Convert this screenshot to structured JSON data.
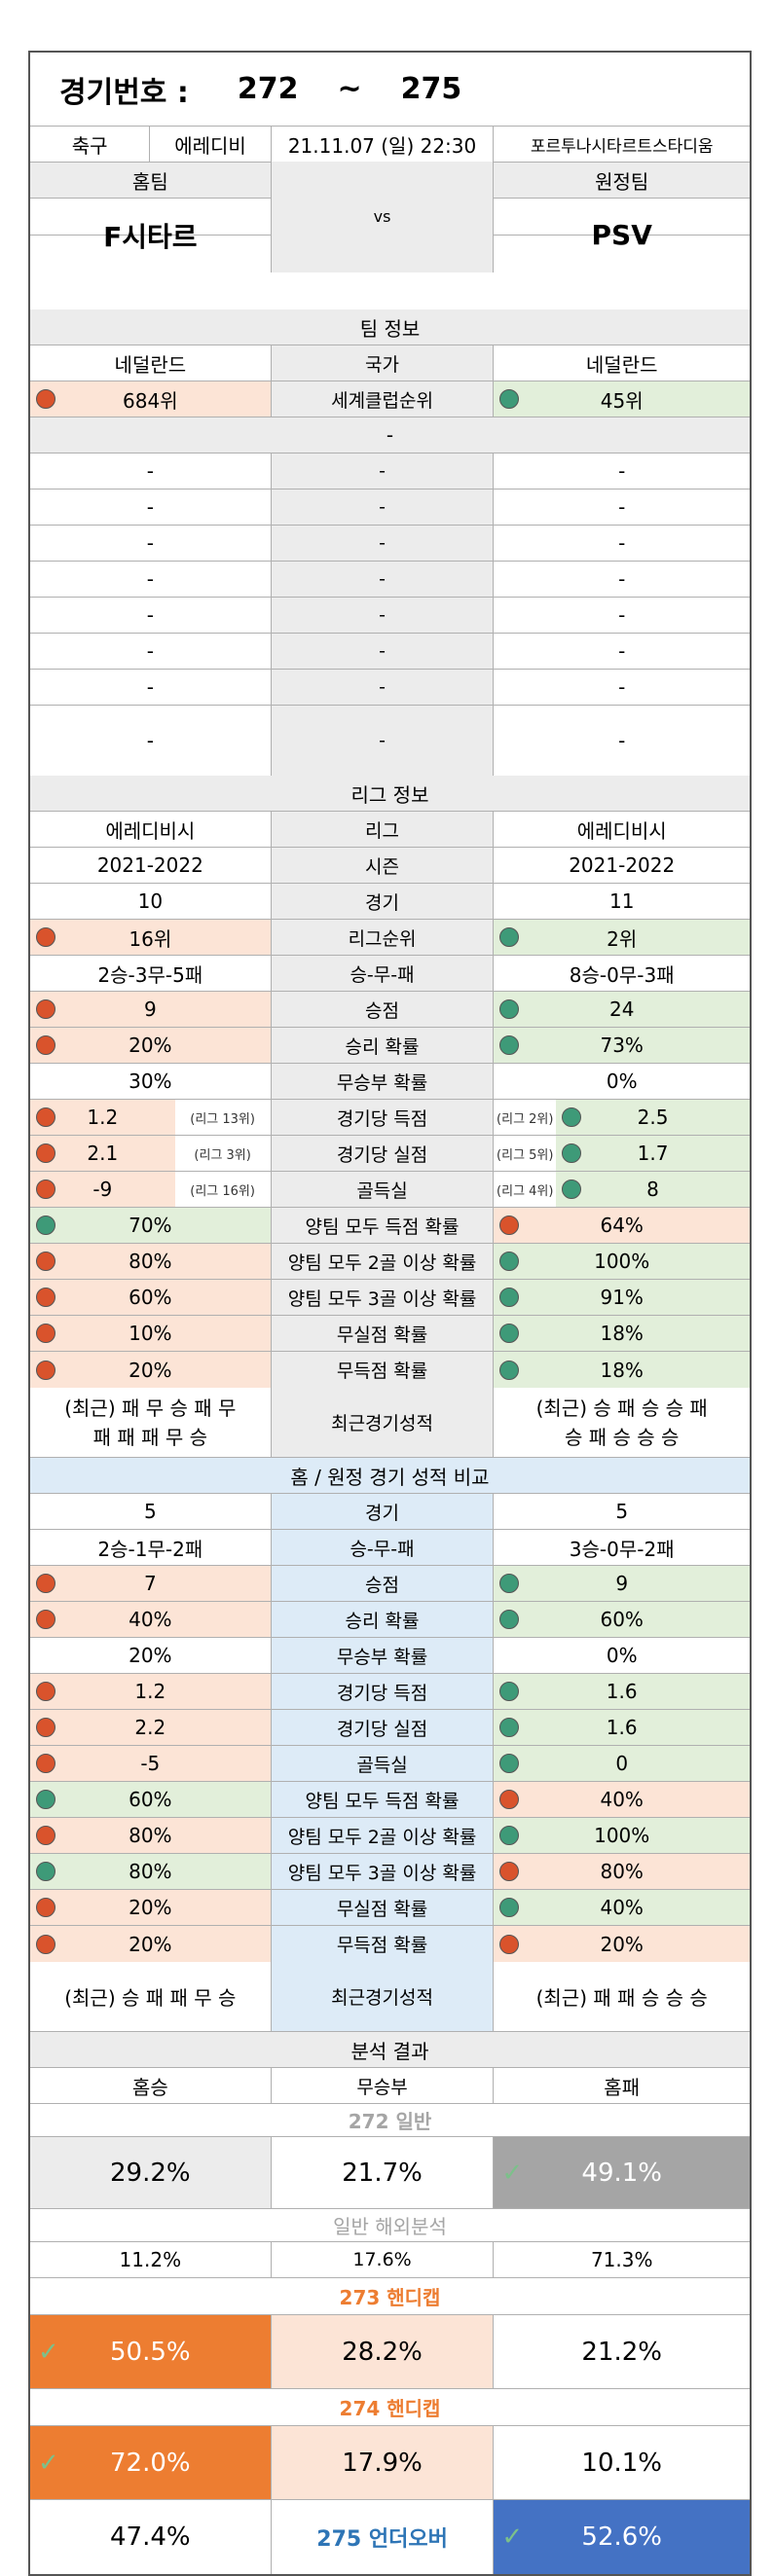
{
  "header": {
    "label": "경기번호 :",
    "from": "272",
    "tilde": "~",
    "to": "275"
  },
  "match": {
    "sport": "축구",
    "league": "에레디비",
    "datetime": "21.11.07 (일) 22:30",
    "stadium": "포르투나시타르트스타디움"
  },
  "teams": {
    "home_label": "홈팀",
    "away_label": "원정팀",
    "home": "F시타르",
    "away": "PSV",
    "vs": "vs"
  },
  "team_info": {
    "title": "팀 정보",
    "country_label": "국가",
    "home_country": "네덜란드",
    "away_country": "네덜란드",
    "rank_label": "세계클럽순위",
    "home_rank": "684위",
    "away_rank": "45위",
    "dash": "-"
  },
  "league_info": {
    "title": "리그 정보",
    "rows": [
      {
        "h": "에레디비시",
        "m": "리그",
        "a": "에레디비시"
      },
      {
        "h": "2021-2022",
        "m": "시즌",
        "a": "2021-2022"
      },
      {
        "h": "10",
        "m": "경기",
        "a": "11"
      },
      {
        "h": "16위",
        "m": "리그순위",
        "a": "2위"
      },
      {
        "h": "2승-3무-5패",
        "m": "승-무-패",
        "a": "8승-0무-3패"
      },
      {
        "h": "9",
        "m": "승점",
        "a": "24"
      },
      {
        "h": "20%",
        "m": "승리 확률",
        "a": "73%"
      },
      {
        "h": "30%",
        "m": "무승부 확률",
        "a": "0%"
      },
      {
        "h": "1.2",
        "hs": "(리그 13위)",
        "m": "경기당 득점",
        "a": "2.5",
        "as": "(리그 2위)"
      },
      {
        "h": "2.1",
        "hs": "(리그 3위)",
        "m": "경기당 실점",
        "a": "1.7",
        "as": "(리그 5위)"
      },
      {
        "h": "-9",
        "hs": "(리그 16위)",
        "m": "골득실",
        "a": "8",
        "as": "(리그 4위)"
      },
      {
        "h": "70%",
        "m": "양팀 모두 득점 확률",
        "a": "64%"
      },
      {
        "h": "80%",
        "m": "양팀 모두 2골 이상 확률",
        "a": "100%"
      },
      {
        "h": "60%",
        "m": "양팀 모두 3골 이상 확률",
        "a": "91%"
      },
      {
        "h": "10%",
        "m": "무실점 확률",
        "a": "18%"
      },
      {
        "h": "20%",
        "m": "무득점 확률",
        "a": "18%"
      }
    ],
    "recent": {
      "h1": "(최근) 패 무 승 패 무",
      "h2": "패 패 패 무 승",
      "m": "최근경기성적",
      "a1": "(최근) 승 패 승 승 패",
      "a2": "승 패 승 승 승"
    }
  },
  "homeaway": {
    "title": "홈 / 원정 경기 성적 비교",
    "rows": [
      {
        "h": "5",
        "m": "경기",
        "a": "5"
      },
      {
        "h": "2승-1무-2패",
        "m": "승-무-패",
        "a": "3승-0무-2패"
      },
      {
        "h": "7",
        "m": "승점",
        "a": "9"
      },
      {
        "h": "40%",
        "m": "승리 확률",
        "a": "60%"
      },
      {
        "h": "20%",
        "m": "무승부 확률",
        "a": "0%"
      },
      {
        "h": "1.2",
        "m": "경기당 득점",
        "a": "1.6"
      },
      {
        "h": "2.2",
        "m": "경기당 실점",
        "a": "1.6"
      },
      {
        "h": "-5",
        "m": "골득실",
        "a": "0"
      },
      {
        "h": "60%",
        "m": "양팀 모두 득점 확률",
        "a": "40%"
      },
      {
        "h": "80%",
        "m": "양팀 모두 2골 이상 확률",
        "a": "100%"
      },
      {
        "h": "80%",
        "m": "양팀 모두 3골 이상 확률",
        "a": "80%"
      },
      {
        "h": "20%",
        "m": "무실점 확률",
        "a": "40%"
      },
      {
        "h": "20%",
        "m": "무득점 확률",
        "a": "20%"
      }
    ],
    "recent": {
      "h": "(최근) 승 패 패 무 승",
      "m": "최근경기성적",
      "a": "(최근) 패 패 승 승 승"
    }
  },
  "analysis": {
    "title": "분석 결과",
    "home_win": "홈승",
    "draw": "무승부",
    "home_loss": "홈패",
    "g272": "272 일반",
    "g272_h": "29.2%",
    "g272_d": "21.7%",
    "g272_a": "49.1%",
    "overseas": "일반 해외분석",
    "ov_h": "11.2%",
    "ov_d": "17.6%",
    "ov_a": "71.3%",
    "g273": "273 핸디캡",
    "g273_h": "50.5%",
    "g273_d": "28.2%",
    "g273_a": "21.2%",
    "g274": "274 핸디캡",
    "g274_h": "72.0%",
    "g274_d": "17.9%",
    "g274_a": "10.1%",
    "g275": "275 언더오버",
    "g275_h": "47.4%",
    "g275_a": "52.6%"
  },
  "colors": {
    "pink": "#fce4d6",
    "green": "#e2efda",
    "blue": "#ddebf7",
    "orange": "#ed7d31",
    "gray": "#a5a5a5",
    "navy": "#4472c4",
    "red_dot": "#d9532c",
    "green_dot": "#3e9a78"
  }
}
